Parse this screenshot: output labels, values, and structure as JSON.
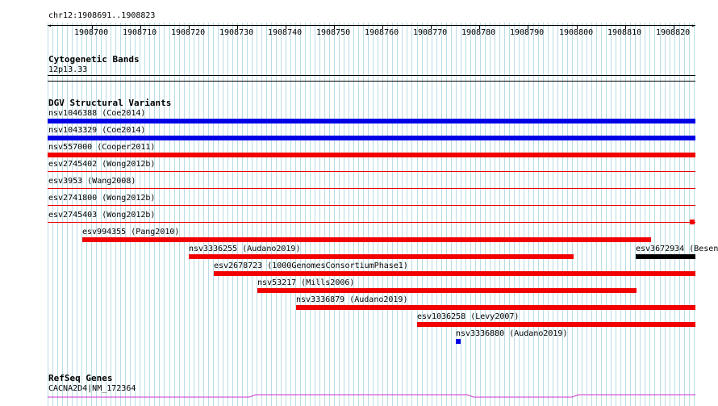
{
  "colors": {
    "blue": "#0000e6",
    "red": "#f20000",
    "black": "#000000",
    "grid": "#b9dde6",
    "refseq": "#cc33cc"
  },
  "ruler": {
    "region_label": "chr12:1908691..1908823",
    "ticks": [
      "1908700",
      "1908710",
      "1908720",
      "1908730",
      "1908740",
      "1908750",
      "1908760",
      "1908770",
      "1908780",
      "1908790",
      "1908800",
      "1908810",
      "1908820"
    ]
  },
  "cyto": {
    "title": "Cytogenetic Bands",
    "band": "12p13.33"
  },
  "dgv": {
    "title": "DGV Structural Variants",
    "variants": [
      {
        "label": "nsv1046388  (Coe2014)",
        "color": "blue"
      },
      {
        "label": "nsv1043329  (Coe2014)",
        "color": "blue"
      },
      {
        "label": "nsv557000  (Cooper2011)",
        "color": "red"
      },
      {
        "label": "esv2745402  (Wong2012b)",
        "color": "red"
      },
      {
        "label": "esv3953  (Wang2008)",
        "color": "red"
      },
      {
        "label": "esv2741800  (Wong2012b)",
        "color": "red"
      },
      {
        "label": "esv2745403  (Wong2012b)",
        "color": "red"
      },
      {
        "label": "esv994355  (Pang2010)",
        "color": "red"
      },
      {
        "label": "nsv3336255  (Audano2019)",
        "color": "red"
      },
      {
        "label": "esv3672934  (Besen",
        "color": "black"
      },
      {
        "label": "esv2678723  (1000GenomesConsortiumPhase1)",
        "color": "red"
      },
      {
        "label": "nsv53217  (Mills2006)",
        "color": "red"
      },
      {
        "label": "nsv3336879  (Audano2019)",
        "color": "red"
      },
      {
        "label": "esv1036258  (Levy2007)",
        "color": "red"
      },
      {
        "label": "nsv3336880  (Audano2019)",
        "color": "blue"
      }
    ]
  },
  "refseq": {
    "title": "RefSeq Genes",
    "gene": "CACNA2D4|NM_172364"
  }
}
